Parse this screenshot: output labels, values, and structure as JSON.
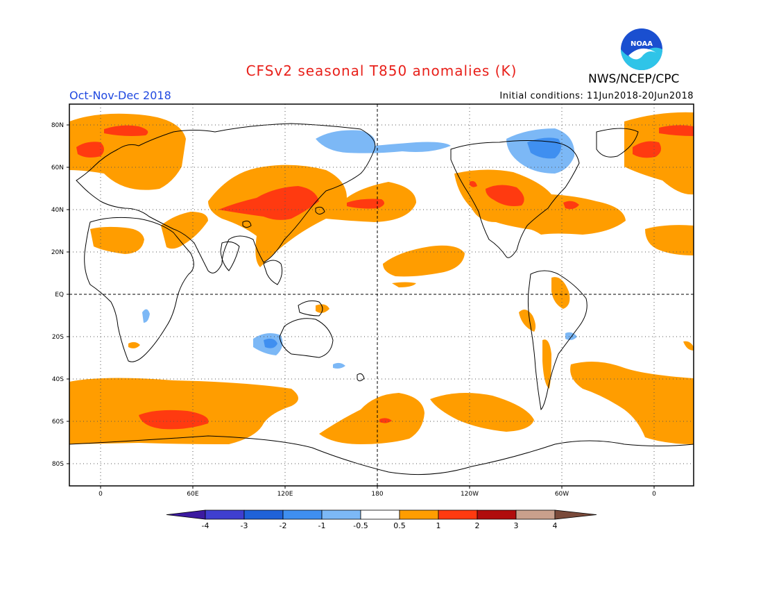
{
  "header": {
    "title": "CFSv2 seasonal T850 anomalies (K)",
    "period": "Oct-Nov-Dec 2018",
    "agency": "NWS/NCEP/CPC",
    "initial_conditions": "Initial conditions: 11Jun2018-20Jun2018",
    "logo_text": "NOAA"
  },
  "colors": {
    "title": "#e8201a",
    "period": "#1f48e0",
    "land_outline": "#000000",
    "grid": "#555555"
  },
  "axes": {
    "lat_labels": [
      "80N",
      "60N",
      "40N",
      "20N",
      "EQ",
      "20S",
      "40S",
      "60S",
      "80S"
    ],
    "lon_labels": [
      "0",
      "60E",
      "120E",
      "180",
      "120W",
      "60W",
      "0"
    ]
  },
  "colorbar": {
    "levels": [
      "-4",
      "-3",
      "-2",
      "-1",
      "-0.5",
      "0.5",
      "1",
      "2",
      "3",
      "4"
    ],
    "colors": [
      "#3c1aa0",
      "#3f3fd0",
      "#1f62d8",
      "#3f8ff0",
      "#7cb8f6",
      "#ffffff",
      "#ff9d00",
      "#ff3a10",
      "#b00d0d",
      "#c9a08c",
      "#7a4a3a"
    ]
  }
}
